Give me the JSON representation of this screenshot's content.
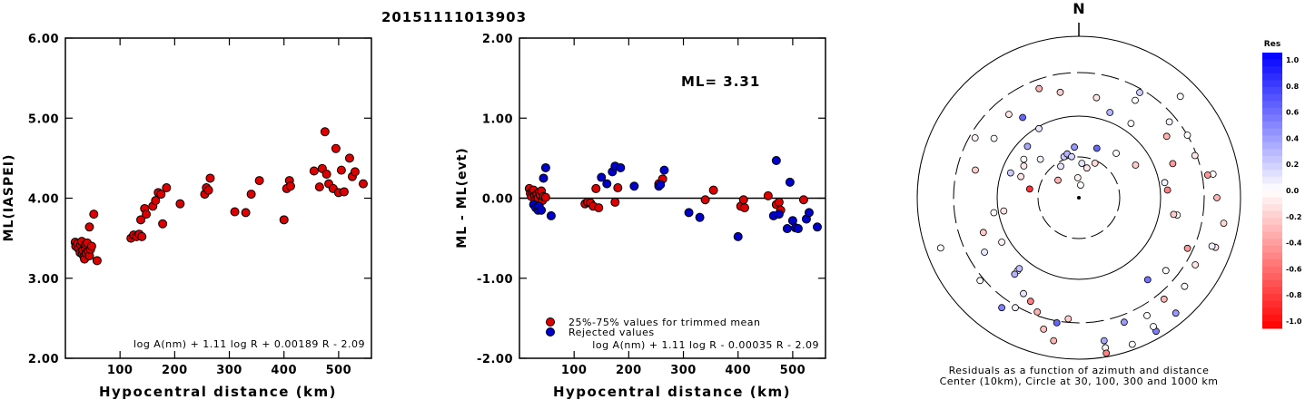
{
  "title": "20151111013903",
  "chart_data": [
    {
      "type": "scatter",
      "ylabel": "ML(IASPEI)",
      "xlabel": "Hypocentral distance (km)",
      "xlim": [
        0,
        560
      ],
      "ylim": [
        2.0,
        6.0
      ],
      "xticks": [
        "100",
        "200",
        "300",
        "400",
        "500"
      ],
      "yticks": [
        "2.00",
        "3.00",
        "4.00",
        "5.00",
        "6.00"
      ],
      "formula": "log A(nm) + 1.11 log R + 0.00189 R - 2.09",
      "series": [
        {
          "color": "#dd0000",
          "points": [
            [
              18,
              3.45
            ],
            [
              19,
              3.4
            ],
            [
              22,
              3.43
            ],
            [
              24,
              3.37
            ],
            [
              27,
              3.32
            ],
            [
              28,
              3.42
            ],
            [
              30,
              3.46
            ],
            [
              31,
              3.3
            ],
            [
              32,
              3.35
            ],
            [
              34,
              3.27
            ],
            [
              35,
              3.24
            ],
            [
              36,
              3.38
            ],
            [
              37,
              3.42
            ],
            [
              38,
              3.31
            ],
            [
              40,
              3.44
            ],
            [
              42,
              3.33
            ],
            [
              44,
              3.28
            ],
            [
              46,
              3.36
            ],
            [
              48,
              3.4
            ],
            [
              44,
              3.64
            ],
            [
              52,
              3.8
            ],
            [
              58,
              3.22
            ],
            [
              120,
              3.5
            ],
            [
              125,
              3.54
            ],
            [
              130,
              3.52
            ],
            [
              135,
              3.55
            ],
            [
              140,
              3.52
            ],
            [
              138,
              3.73
            ],
            [
              145,
              3.87
            ],
            [
              148,
              3.8
            ],
            [
              160,
              3.9
            ],
            [
              165,
              3.97
            ],
            [
              170,
              4.07
            ],
            [
              175,
              4.05
            ],
            [
              185,
              4.13
            ],
            [
              178,
              3.68
            ],
            [
              210,
              3.93
            ],
            [
              255,
              4.05
            ],
            [
              258,
              4.13
            ],
            [
              262,
              4.1
            ],
            [
              265,
              4.25
            ],
            [
              310,
              3.83
            ],
            [
              330,
              3.82
            ],
            [
              340,
              4.05
            ],
            [
              355,
              4.22
            ],
            [
              400,
              3.73
            ],
            [
              405,
              4.12
            ],
            [
              410,
              4.22
            ],
            [
              412,
              4.15
            ],
            [
              455,
              4.34
            ],
            [
              465,
              4.14
            ],
            [
              470,
              4.37
            ],
            [
              475,
              4.83
            ],
            [
              478,
              4.3
            ],
            [
              482,
              4.18
            ],
            [
              490,
              4.12
            ],
            [
              495,
              4.62
            ],
            [
              500,
              4.07
            ],
            [
              505,
              4.35
            ],
            [
              510,
              4.08
            ],
            [
              520,
              4.5
            ],
            [
              525,
              4.27
            ],
            [
              530,
              4.33
            ],
            [
              545,
              4.18
            ]
          ]
        }
      ]
    },
    {
      "type": "scatter",
      "ylabel": "ML - ML(evt)",
      "xlabel": "Hypocentral distance (km)",
      "xlim": [
        0,
        560
      ],
      "ylim": [
        -2.0,
        2.0
      ],
      "xticks": [
        "100",
        "200",
        "300",
        "400",
        "500"
      ],
      "yticks": [
        "-2.00",
        "-1.00",
        "0.00",
        "1.00",
        "2.00"
      ],
      "annotation": "ML= 3.31",
      "formula": "log A(nm) + 1.11 log R - 0.00035 R - 2.09",
      "legend": [
        {
          "label": "25%-75% values for trimmed mean",
          "color": "#dd0000"
        },
        {
          "label": "Rejected values",
          "color": "#0000cc"
        }
      ],
      "series": [
        {
          "name": "25%-75% values for trimmed mean",
          "color": "#dd0000",
          "points": [
            [
              18,
              0.12
            ],
            [
              20,
              0.06
            ],
            [
              22,
              0.02
            ],
            [
              24,
              0.08
            ],
            [
              26,
              0.1
            ],
            [
              28,
              0.03
            ],
            [
              30,
              -0.02
            ],
            [
              32,
              0.05
            ],
            [
              34,
              0.0
            ],
            [
              36,
              0.07
            ],
            [
              38,
              0.04
            ],
            [
              40,
              0.09
            ],
            [
              42,
              -0.03
            ],
            [
              44,
              0.02
            ],
            [
              48,
              0.01
            ],
            [
              120,
              -0.07
            ],
            [
              125,
              -0.05
            ],
            [
              130,
              -0.06
            ],
            [
              135,
              -0.1
            ],
            [
              140,
              0.12
            ],
            [
              145,
              -0.12
            ],
            [
              175,
              -0.05
            ],
            [
              180,
              0.13
            ],
            [
              255,
              0.18
            ],
            [
              262,
              0.24
            ],
            [
              340,
              -0.02
            ],
            [
              355,
              0.1
            ],
            [
              405,
              -0.1
            ],
            [
              410,
              -0.02
            ],
            [
              412,
              -0.12
            ],
            [
              455,
              0.03
            ],
            [
              470,
              -0.08
            ],
            [
              475,
              -0.05
            ],
            [
              478,
              -0.15
            ],
            [
              520,
              -0.02
            ]
          ]
        },
        {
          "name": "Rejected values",
          "color": "#0000cc",
          "points": [
            [
              26,
              -0.08
            ],
            [
              30,
              -0.12
            ],
            [
              34,
              -0.15
            ],
            [
              36,
              -0.1
            ],
            [
              40,
              -0.15
            ],
            [
              44,
              0.25
            ],
            [
              48,
              0.38
            ],
            [
              58,
              -0.22
            ],
            [
              150,
              0.26
            ],
            [
              160,
              0.18
            ],
            [
              170,
              0.33
            ],
            [
              175,
              0.4
            ],
            [
              185,
              0.38
            ],
            [
              210,
              0.15
            ],
            [
              255,
              0.15
            ],
            [
              258,
              0.17
            ],
            [
              265,
              0.35
            ],
            [
              310,
              -0.18
            ],
            [
              330,
              -0.24
            ],
            [
              400,
              -0.48
            ],
            [
              465,
              -0.22
            ],
            [
              470,
              0.47
            ],
            [
              475,
              -0.2
            ],
            [
              490,
              -0.38
            ],
            [
              495,
              0.2
            ],
            [
              500,
              -0.28
            ],
            [
              505,
              -0.37
            ],
            [
              510,
              -0.38
            ],
            [
              525,
              -0.26
            ],
            [
              530,
              -0.18
            ],
            [
              545,
              -0.36
            ]
          ]
        }
      ]
    },
    {
      "type": "polar-scatter",
      "north_label": "N",
      "caption_line1": "Residuals as a function of azimuth and distance",
      "caption_line2": "Center (10km), Circle at 30, 100, 300 and 1000 km",
      "colorbar": {
        "title": "Res",
        "ticks": [
          "1.0",
          "0.8",
          "0.6",
          "0.4",
          "0.2",
          "0.0",
          "-0.2",
          "-0.4",
          "-0.6",
          "-0.8",
          "-1.0"
        ],
        "range": [
          -1.0,
          1.0
        ]
      },
      "points": [
        [
          -3,
          -0.05
        ],
        [
          8,
          0.0
        ],
        [
          -30,
          0.1
        ],
        [
          -20,
          0.2
        ],
        [
          -15,
          0.3
        ],
        [
          -10,
          0.15
        ],
        [
          5,
          0.1
        ],
        [
          15,
          -0.1
        ],
        [
          25,
          -0.15
        ],
        [
          -45,
          0.05
        ],
        [
          -60,
          -0.1
        ],
        [
          -70,
          0.2
        ],
        [
          -80,
          -0.8
        ],
        [
          -100,
          0.0
        ],
        [
          -120,
          0.1
        ],
        [
          -140,
          0.0
        ],
        [
          -150,
          0.05
        ],
        [
          40,
          0.0
        ],
        [
          60,
          -0.2
        ],
        [
          80,
          0.05
        ],
        [
          100,
          0.0
        ],
        [
          130,
          0.0
        ],
        [
          150,
          0.0
        ],
        [
          170,
          -0.05
        ],
        [
          -60,
          -0.05
        ],
        [
          -40,
          -0.1
        ],
        [
          -20,
          -0.3
        ],
        [
          -10,
          -0.2
        ],
        [
          10,
          -0.1
        ],
        [
          30,
          0.0
        ],
        [
          50,
          0.05
        ],
        [
          80,
          0.0
        ],
        [
          110,
          -0.1
        ],
        [
          -170,
          0.6
        ],
        [
          -110,
          0.0
        ],
        [
          -130,
          0.0
        ],
        [
          -145,
          0.5
        ],
        [
          160,
          0.4
        ],
        [
          150,
          0.5
        ],
        [
          140,
          0.4
        ],
        [
          130,
          0.0
        ],
        [
          -175,
          -0.2
        ],
        [
          20,
          0.3
        ],
        [
          -30,
          0.1
        ],
        [
          -45,
          0.35
        ],
        [
          -55,
          0.0
        ],
        [
          -70,
          -0.1
        ],
        [
          -100,
          -0.1
        ],
        [
          -120,
          -0.05
        ],
        [
          -140,
          0.3
        ],
        [
          -150,
          0.1
        ],
        [
          -160,
          -0.3
        ],
        [
          -165,
          -0.25
        ],
        [
          170,
          0.35
        ],
        [
          160,
          0.0
        ],
        [
          140,
          0.55
        ],
        [
          120,
          -0.1
        ],
        [
          110,
          0.05
        ],
        [
          100,
          -0.15
        ],
        [
          90,
          -0.3
        ],
        [
          80,
          -0.4
        ],
        [
          70,
          -0.1
        ],
        [
          60,
          0.0
        ],
        [
          45,
          0.0
        ],
        [
          30,
          0.2
        ],
        [
          -35,
          0.6
        ],
        [
          -55,
          0.0
        ],
        [
          -75,
          -0.2
        ],
        [
          -110,
          -0.2
        ],
        [
          -140,
          0.25
        ],
        [
          -155,
          -0.5
        ],
        [
          -170,
          -0.3
        ],
        [
          170,
          -0.5
        ],
        [
          150,
          0.0
        ],
        [
          140,
          -0.3
        ],
        [
          115,
          -0.4
        ],
        [
          100,
          -0.2
        ],
        [
          85,
          -0.5
        ],
        [
          70,
          -0.4
        ],
        [
          55,
          -0.3
        ],
        [
          35,
          0.0
        ],
        [
          -5,
          0.4
        ],
        [
          20,
          0.6
        ],
        [
          -50,
          -0.3
        ]
      ]
    }
  ]
}
